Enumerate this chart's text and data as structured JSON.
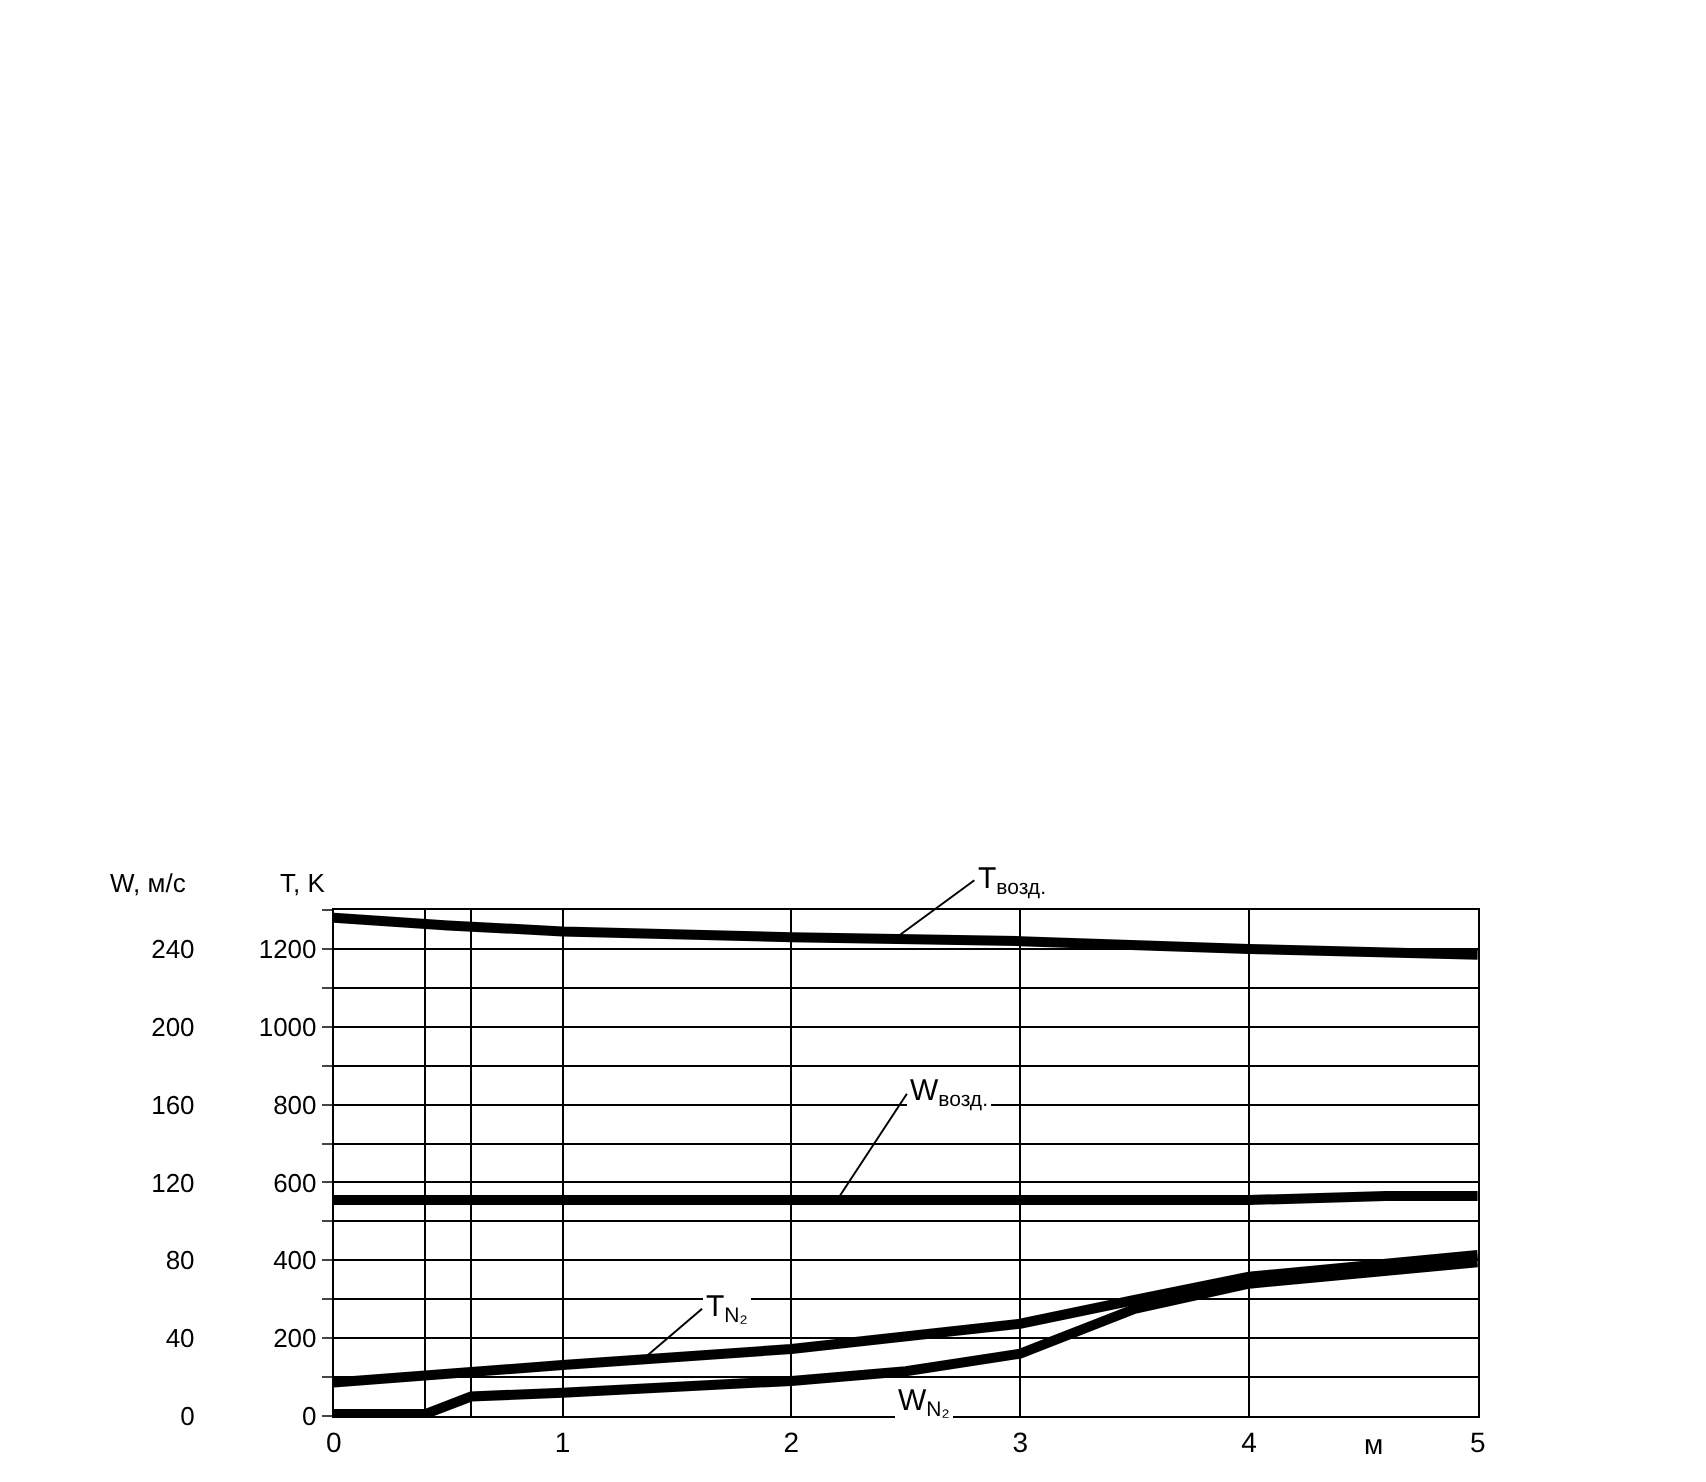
{
  "chart_data": {
    "type": "line",
    "xlabel": "м",
    "ylabel": "T, K",
    "y2label": "W, м/с",
    "series": [
      {
        "name": "T$_{возд.}$",
        "color": "#000000",
        "axis": "y",
        "x": [
          0,
          0.5,
          1,
          2,
          3,
          4,
          5
        ],
        "values": [
          1280,
          1260,
          1245,
          1230,
          1220,
          1200,
          1185
        ]
      },
      {
        "name": "W$_{возд.}$",
        "color": "#000000",
        "axis": "y2",
        "x": [
          0,
          1,
          2,
          3,
          4,
          4.6,
          5
        ],
        "values": [
          111,
          111,
          111,
          111,
          111,
          113,
          113
        ]
      },
      {
        "name": "T$_{N₂}$",
        "color": "#000000",
        "axis": "y",
        "x": [
          0,
          1,
          2,
          3,
          3.5,
          4,
          5
        ],
        "values": [
          86,
          131,
          172,
          237,
          298,
          358,
          414
        ]
      },
      {
        "name": "W$_{N₂}$",
        "color": "#000000",
        "axis": "y2",
        "x": [
          0,
          0.4,
          0.6,
          1,
          2,
          2.5,
          3,
          3.5,
          4,
          5
        ],
        "values": [
          1,
          1,
          10,
          12,
          18,
          23,
          32,
          55,
          68,
          79
        ]
      }
    ],
    "xlim": [
      0,
      5
    ],
    "xticks": [
      0,
      {
        "value": 0.4,
        "label": null
      },
      {
        "value": 0.6,
        "label": null
      },
      1,
      2,
      3,
      4,
      5
    ],
    "ylim": [
      0,
      1300
    ],
    "yticks": [
      0,
      {
        "value": 100,
        "label": null
      },
      200,
      {
        "value": 300,
        "label": null
      },
      400,
      {
        "value": 500,
        "label": null
      },
      600,
      {
        "value": 700,
        "label": null
      },
      800,
      {
        "value": 900,
        "label": null
      },
      1000,
      {
        "value": 1100,
        "label": null
      },
      1200,
      {
        "value": 1300,
        "label": null
      }
    ],
    "y2lim": [
      0,
      260
    ],
    "y2ticks": [
      0,
      40,
      80,
      120,
      160,
      200,
      240
    ],
    "grid": true,
    "legend": false,
    "marker": "none",
    "line_style": "solid"
  }
}
